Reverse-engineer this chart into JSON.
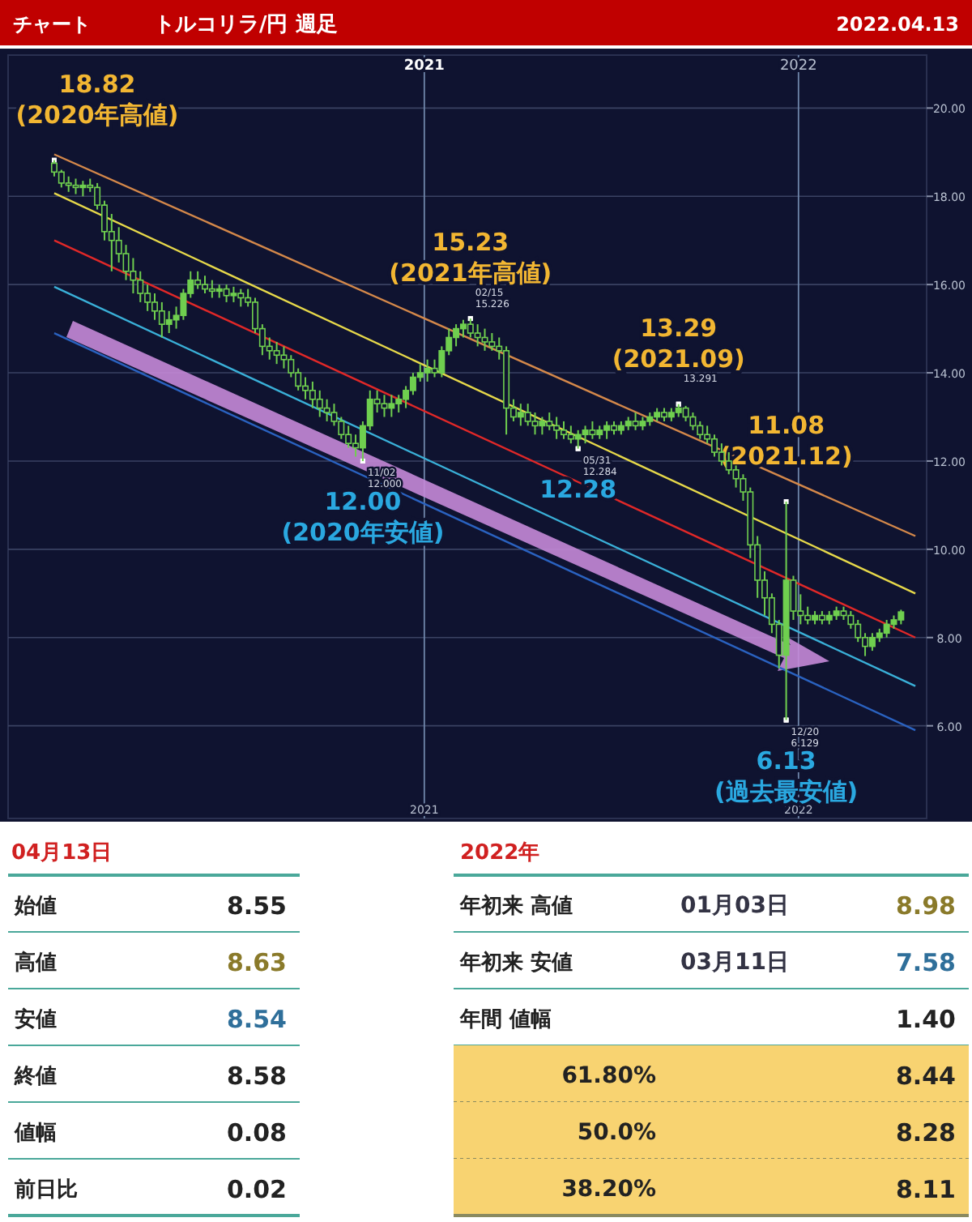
{
  "chart_data": [
    {
      "type": "candlestick",
      "title": "トルコリラ/円 週足",
      "annotations": [
        "チャート",
        "2022.04.13",
        {
          "text": "18.82\n(2020年高値)",
          "x": "2020-01-06",
          "y": 18.82
        },
        {
          "text": "11/02\n12.000",
          "x": "2020-11-02",
          "y": 12.0
        },
        {
          "text": "12.00\n(2020年安値)",
          "x": "2020-11-02",
          "y": 12.0
        },
        {
          "text": "02/15\n15.226",
          "x": "2021-02-15",
          "y": 15.23
        },
        {
          "text": "15.23\n(2021年高値)",
          "x": "2021-02-15",
          "y": 15.23
        },
        {
          "text": "05/31\n12.284",
          "x": "2021-05-31",
          "y": 12.28
        },
        {
          "text": "12.28",
          "x": "2021-05-31",
          "y": 12.28
        },
        {
          "text": "13.291",
          "x": "2021-09-06",
          "y": 13.29
        },
        {
          "text": "13.29\n(2021.09)",
          "x": "2021-09-06",
          "y": 13.29
        },
        {
          "text": "11.08\n(2021.12)",
          "x": "2021-12-20",
          "y": 11.08
        },
        {
          "text": "12/20\n6.129",
          "x": "2021-12-20",
          "y": 6.13
        },
        {
          "text": "6.13\n(過去最安値)",
          "x": "2021-12-20",
          "y": 6.13
        }
      ],
      "x": [
        "2020-01-06",
        "2020-01-13",
        "2020-01-20",
        "2020-01-27",
        "2020-02-03",
        "2020-02-10",
        "2020-02-17",
        "2020-02-24",
        "2020-03-02",
        "2020-03-09",
        "2020-03-16",
        "2020-03-23",
        "2020-03-30",
        "2020-04-06",
        "2020-04-13",
        "2020-04-20",
        "2020-04-27",
        "2020-05-04",
        "2020-05-11",
        "2020-05-18",
        "2020-05-25",
        "2020-06-01",
        "2020-06-08",
        "2020-06-15",
        "2020-06-22",
        "2020-06-29",
        "2020-07-06",
        "2020-07-13",
        "2020-07-20",
        "2020-07-27",
        "2020-08-03",
        "2020-08-10",
        "2020-08-17",
        "2020-08-24",
        "2020-08-31",
        "2020-09-07",
        "2020-09-14",
        "2020-09-21",
        "2020-09-28",
        "2020-10-05",
        "2020-10-12",
        "2020-10-19",
        "2020-10-26",
        "2020-11-02",
        "2020-11-09",
        "2020-11-16",
        "2020-11-23",
        "2020-11-30",
        "2020-12-07",
        "2020-12-14",
        "2020-12-21",
        "2020-12-28",
        "2021-01-04",
        "2021-01-11",
        "2021-01-18",
        "2021-01-25",
        "2021-02-01",
        "2021-02-08",
        "2021-02-15",
        "2021-02-22",
        "2021-03-01",
        "2021-03-08",
        "2021-03-15",
        "2021-03-22",
        "2021-03-29",
        "2021-04-05",
        "2021-04-12",
        "2021-04-19",
        "2021-04-26",
        "2021-05-03",
        "2021-05-10",
        "2021-05-17",
        "2021-05-24",
        "2021-05-31",
        "2021-06-07",
        "2021-06-14",
        "2021-06-21",
        "2021-06-28",
        "2021-07-05",
        "2021-07-12",
        "2021-07-19",
        "2021-07-26",
        "2021-08-02",
        "2021-08-09",
        "2021-08-16",
        "2021-08-23",
        "2021-08-30",
        "2021-09-06",
        "2021-09-13",
        "2021-09-20",
        "2021-09-27",
        "2021-10-04",
        "2021-10-11",
        "2021-10-18",
        "2021-10-25",
        "2021-11-01",
        "2021-11-08",
        "2021-11-15",
        "2021-11-22",
        "2021-11-29",
        "2021-12-06",
        "2021-12-13",
        "2021-12-20",
        "2021-12-27",
        "2022-01-03",
        "2022-01-10",
        "2022-01-17",
        "2022-01-24",
        "2022-01-31",
        "2022-02-07",
        "2022-02-14",
        "2022-02-21",
        "2022-02-28",
        "2022-03-07",
        "2022-03-14",
        "2022-03-21",
        "2022-03-28",
        "2022-04-04",
        "2022-04-11"
      ],
      "ohlc": [
        [
          18.75,
          18.82,
          18.45,
          18.55
        ],
        [
          18.55,
          18.6,
          18.2,
          18.3
        ],
        [
          18.3,
          18.45,
          18.1,
          18.25
        ],
        [
          18.25,
          18.4,
          18.05,
          18.2
        ],
        [
          18.2,
          18.35,
          18.0,
          18.25
        ],
        [
          18.25,
          18.4,
          18.1,
          18.2
        ],
        [
          18.2,
          18.3,
          17.7,
          17.8
        ],
        [
          17.8,
          17.9,
          17.0,
          17.2
        ],
        [
          17.2,
          17.6,
          16.3,
          17.0
        ],
        [
          17.0,
          17.3,
          16.5,
          16.7
        ],
        [
          16.7,
          16.9,
          16.1,
          16.3
        ],
        [
          16.3,
          16.6,
          15.8,
          16.1
        ],
        [
          16.1,
          16.3,
          15.6,
          15.8
        ],
        [
          15.8,
          16.0,
          15.4,
          15.6
        ],
        [
          15.6,
          15.8,
          15.2,
          15.4
        ],
        [
          15.4,
          15.6,
          14.8,
          15.1
        ],
        [
          15.1,
          15.4,
          14.9,
          15.2
        ],
        [
          15.2,
          15.5,
          15.0,
          15.3
        ],
        [
          15.3,
          15.9,
          15.2,
          15.8
        ],
        [
          15.8,
          16.3,
          15.7,
          16.1
        ],
        [
          16.1,
          16.3,
          15.9,
          16.0
        ],
        [
          16.0,
          16.2,
          15.8,
          15.9
        ],
        [
          15.9,
          16.1,
          15.7,
          15.85
        ],
        [
          15.85,
          16.0,
          15.7,
          15.9
        ],
        [
          15.9,
          16.0,
          15.6,
          15.75
        ],
        [
          15.75,
          15.95,
          15.6,
          15.8
        ],
        [
          15.8,
          15.9,
          15.5,
          15.7
        ],
        [
          15.7,
          15.9,
          15.5,
          15.6
        ],
        [
          15.6,
          15.7,
          14.9,
          15.0
        ],
        [
          15.0,
          15.1,
          14.4,
          14.6
        ],
        [
          14.6,
          14.8,
          14.3,
          14.5
        ],
        [
          14.5,
          14.7,
          14.2,
          14.4
        ],
        [
          14.4,
          14.6,
          14.1,
          14.3
        ],
        [
          14.3,
          14.4,
          13.9,
          14.0
        ],
        [
          14.0,
          14.1,
          13.6,
          13.7
        ],
        [
          13.7,
          13.9,
          13.4,
          13.6
        ],
        [
          13.6,
          13.8,
          13.2,
          13.4
        ],
        [
          13.4,
          13.6,
          13.0,
          13.2
        ],
        [
          13.2,
          13.4,
          12.9,
          13.1
        ],
        [
          13.1,
          13.3,
          12.8,
          12.9
        ],
        [
          12.9,
          13.0,
          12.5,
          12.6
        ],
        [
          12.6,
          12.8,
          12.3,
          12.4
        ],
        [
          12.4,
          12.6,
          12.1,
          12.3
        ],
        [
          12.3,
          12.9,
          12.0,
          12.8
        ],
        [
          12.8,
          13.6,
          12.7,
          13.4
        ],
        [
          13.4,
          13.6,
          13.1,
          13.3
        ],
        [
          13.3,
          13.5,
          13.0,
          13.2
        ],
        [
          13.2,
          13.5,
          13.0,
          13.3
        ],
        [
          13.3,
          13.5,
          13.1,
          13.4
        ],
        [
          13.4,
          13.7,
          13.2,
          13.6
        ],
        [
          13.6,
          14.0,
          13.5,
          13.9
        ],
        [
          13.9,
          14.2,
          13.8,
          14.0
        ],
        [
          14.0,
          14.3,
          13.8,
          14.1
        ],
        [
          14.1,
          14.3,
          13.9,
          14.0
        ],
        [
          14.0,
          14.6,
          13.9,
          14.5
        ],
        [
          14.5,
          15.0,
          14.4,
          14.8
        ],
        [
          14.8,
          15.1,
          14.6,
          15.0
        ],
        [
          15.0,
          15.2,
          14.8,
          15.1
        ],
        [
          15.1,
          15.23,
          14.8,
          14.9
        ],
        [
          14.9,
          15.1,
          14.6,
          14.8
        ],
        [
          14.8,
          15.0,
          14.5,
          14.7
        ],
        [
          14.7,
          14.9,
          14.5,
          14.6
        ],
        [
          14.6,
          14.8,
          14.3,
          14.5
        ],
        [
          14.5,
          14.6,
          12.6,
          13.2
        ],
        [
          13.2,
          13.4,
          12.9,
          13.0
        ],
        [
          13.0,
          13.3,
          12.8,
          13.1
        ],
        [
          13.1,
          13.3,
          12.8,
          12.9
        ],
        [
          12.9,
          13.1,
          12.6,
          12.8
        ],
        [
          12.8,
          13.0,
          12.6,
          12.9
        ],
        [
          12.9,
          13.1,
          12.7,
          12.8
        ],
        [
          12.8,
          13.0,
          12.5,
          12.7
        ],
        [
          12.7,
          12.9,
          12.5,
          12.6
        ],
        [
          12.6,
          12.8,
          12.4,
          12.5
        ],
        [
          12.5,
          12.7,
          12.28,
          12.6
        ],
        [
          12.6,
          12.8,
          12.4,
          12.7
        ],
        [
          12.7,
          12.9,
          12.5,
          12.6
        ],
        [
          12.6,
          12.8,
          12.5,
          12.7
        ],
        [
          12.7,
          12.9,
          12.5,
          12.8
        ],
        [
          12.8,
          12.9,
          12.6,
          12.7
        ],
        [
          12.7,
          12.9,
          12.6,
          12.8
        ],
        [
          12.8,
          13.0,
          12.7,
          12.9
        ],
        [
          12.9,
          13.1,
          12.7,
          12.8
        ],
        [
          12.8,
          13.0,
          12.7,
          12.9
        ],
        [
          12.9,
          13.1,
          12.8,
          13.0
        ],
        [
          13.0,
          13.2,
          12.9,
          13.1
        ],
        [
          13.1,
          13.2,
          12.9,
          13.0
        ],
        [
          13.0,
          13.2,
          12.9,
          13.1
        ],
        [
          13.1,
          13.29,
          13.0,
          13.2
        ],
        [
          13.2,
          13.25,
          12.9,
          13.0
        ],
        [
          13.0,
          13.1,
          12.7,
          12.8
        ],
        [
          12.8,
          12.9,
          12.5,
          12.6
        ],
        [
          12.6,
          12.8,
          12.4,
          12.5
        ],
        [
          12.5,
          12.6,
          12.1,
          12.2
        ],
        [
          12.2,
          12.4,
          11.9,
          12.0
        ],
        [
          12.0,
          12.2,
          11.7,
          11.8
        ],
        [
          11.8,
          11.9,
          11.4,
          11.6
        ],
        [
          11.6,
          11.7,
          11.1,
          11.3
        ],
        [
          11.3,
          11.4,
          9.8,
          10.1
        ],
        [
          10.1,
          10.3,
          8.9,
          9.3
        ],
        [
          9.3,
          9.5,
          8.5,
          8.9
        ],
        [
          8.9,
          9.0,
          8.1,
          8.3
        ],
        [
          8.3,
          8.4,
          7.3,
          7.6
        ],
        [
          7.6,
          11.08,
          6.13,
          9.3
        ],
        [
          9.3,
          9.4,
          8.4,
          8.6
        ],
        [
          8.6,
          8.98,
          8.3,
          8.5
        ],
        [
          8.5,
          8.7,
          8.3,
          8.4
        ],
        [
          8.4,
          8.6,
          8.3,
          8.5
        ],
        [
          8.5,
          8.6,
          8.3,
          8.4
        ],
        [
          8.4,
          8.6,
          8.3,
          8.5
        ],
        [
          8.5,
          8.7,
          8.4,
          8.6
        ],
        [
          8.6,
          8.7,
          8.4,
          8.5
        ],
        [
          8.5,
          8.6,
          8.2,
          8.3
        ],
        [
          8.3,
          8.4,
          7.9,
          8.0
        ],
        [
          8.0,
          8.1,
          7.58,
          7.8
        ],
        [
          7.8,
          8.1,
          7.7,
          8.0
        ],
        [
          8.0,
          8.2,
          7.9,
          8.1
        ],
        [
          8.1,
          8.4,
          8.0,
          8.3
        ],
        [
          8.3,
          8.5,
          8.2,
          8.4
        ],
        [
          8.4,
          8.63,
          8.3,
          8.58
        ]
      ],
      "color": "#6fcf4f",
      "series": [
        {
          "type": "line",
          "x": [
            "2020-01-06",
            "2022-04-25"
          ],
          "values": [
            18.95,
            10.3
          ],
          "color": "#d4884a"
        },
        {
          "type": "line",
          "x": [
            "2020-01-06",
            "2022-04-25"
          ],
          "values": [
            18.07,
            9.0
          ],
          "color": "#e6d84a"
        },
        {
          "type": "line",
          "x": [
            "2020-01-06",
            "2022-04-25"
          ],
          "values": [
            17.0,
            8.0
          ],
          "color": "#e02828"
        },
        {
          "type": "line",
          "x": [
            "2020-01-06",
            "2022-04-25"
          ],
          "values": [
            15.95,
            6.9
          ],
          "color": "#3ab0d8"
        },
        {
          "type": "line",
          "x": [
            "2020-01-06",
            "2022-04-25"
          ],
          "values": [
            14.9,
            5.9
          ],
          "color": "#2a62c0"
        }
      ],
      "xlim": [
        "2019-11-22",
        "2022-05-06"
      ],
      "ylim": [
        3.9,
        21.2
      ],
      "yticks": [
        {
          "value": 6,
          "label": "6.00"
        },
        {
          "value": 8,
          "label": "8.00"
        },
        {
          "value": 10,
          "label": "10.00"
        },
        {
          "value": 12,
          "label": "12.00"
        },
        {
          "value": 14,
          "label": "14.00"
        },
        {
          "value": 16,
          "label": "16.00"
        },
        {
          "value": 18,
          "label": "18.00"
        },
        {
          "value": 20,
          "label": "20.00"
        }
      ],
      "xticks": [
        {
          "value": "2021-01-01",
          "label": "2021"
        },
        {
          "value": "2022-01-01",
          "label": "2022"
        }
      ],
      "x2lim": [
        "2019-11-22",
        "2022-05-06"
      ],
      "x2ticks": [
        {
          "value": "2021-01-01",
          "label": "2021"
        },
        {
          "value": "2022-01-01",
          "label": "2022"
        }
      ],
      "grid": true
    },
    {
      "type": "other",
      "title": "04月13日",
      "annotations": [
        "始値",
        "8.55",
        "高値",
        "8.63",
        "安値",
        "8.54",
        "終値",
        "8.58",
        "値幅",
        "0.08",
        "前日比",
        "0.02"
      ]
    },
    {
      "type": "other",
      "title": "2022年",
      "annotations": [
        "年初来 高値",
        "01月03日",
        "8.98",
        "年初来 安値",
        "03月11日",
        "7.58",
        "年間 値幅",
        "1.40",
        "61.80%",
        "8.44",
        "50.0%",
        "8.28",
        "38.20%",
        "8.11"
      ]
    }
  ]
}
